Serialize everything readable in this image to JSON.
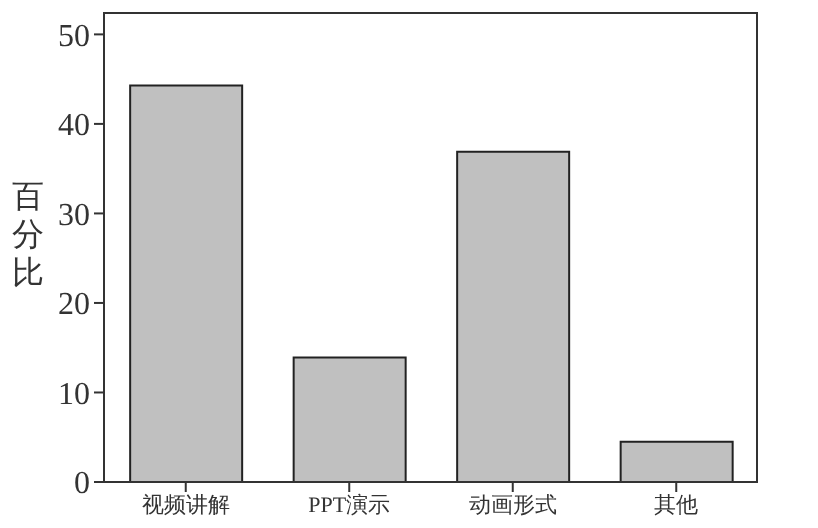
{
  "chart_data": {
    "type": "bar",
    "ylabel": "百分比",
    "categories": [
      "视频讲解",
      "PPT演示",
      "动画形式",
      "其他"
    ],
    "values": [
      44.3,
      13.9,
      36.9,
      4.5
    ],
    "color": "#c0c0c0",
    "ylim": [
      0,
      52.5
    ],
    "yticks": [
      0,
      10,
      20,
      30,
      40,
      50
    ],
    "grid": false,
    "legend": false
  }
}
